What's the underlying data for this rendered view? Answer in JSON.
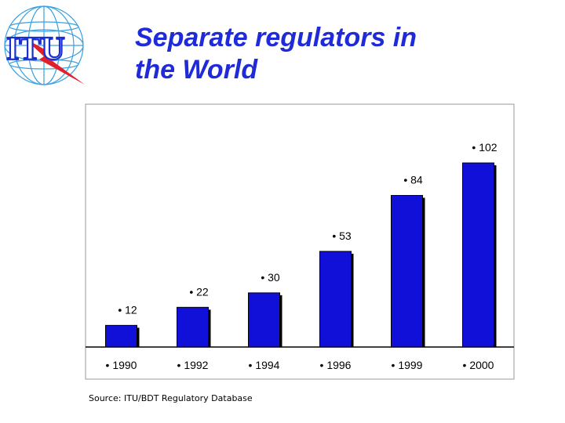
{
  "slide": {
    "title_line1": "Separate regulators in",
    "title_line2": "the World",
    "source": "Source: ITU/BDT Regulatory Database",
    "logo_text": "ITU"
  },
  "colors": {
    "title": "#1f2ad9",
    "bar_fill": "#1010d8",
    "bar_edge": "#000000",
    "logo_text": "#1a2fd0",
    "logo_bolt": "#e0202a"
  },
  "chart_data": {
    "type": "bar",
    "categories": [
      "• 1990",
      "• 1992",
      "• 1994",
      "• 1996",
      "• 1999",
      "• 2000"
    ],
    "values": [
      12,
      22,
      30,
      53,
      84,
      102
    ],
    "value_labels": [
      "• 12",
      "• 22",
      "• 30",
      "• 53",
      "• 84",
      "• 102"
    ],
    "title": "",
    "xlabel": "",
    "ylabel": "",
    "ylim": [
      0,
      120
    ],
    "grid": false,
    "legend": "none"
  }
}
